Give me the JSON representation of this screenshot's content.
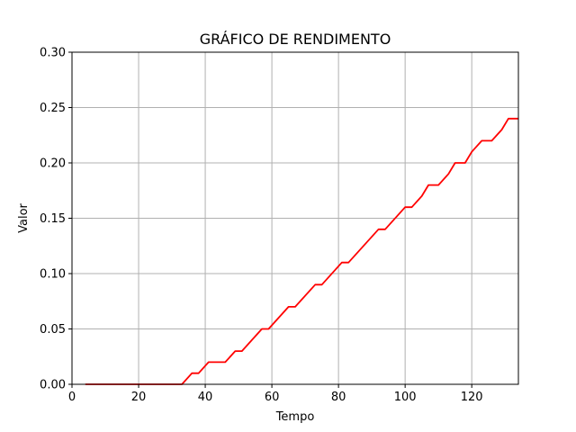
{
  "chart_data": {
    "type": "line",
    "title": "GRÁFICO DE RENDIMENTO",
    "xlabel": "Tempo",
    "ylabel": "Valor",
    "xlim": [
      0,
      134
    ],
    "ylim": [
      0,
      0.3
    ],
    "grid": true,
    "x_ticks": [
      0,
      20,
      40,
      60,
      80,
      100,
      120
    ],
    "x_tick_labels": [
      "0",
      "20",
      "40",
      "60",
      "80",
      "100",
      "120"
    ],
    "y_ticks": [
      0,
      0.05,
      0.1,
      0.15,
      0.2,
      0.25,
      0.3
    ],
    "y_tick_labels": [
      "0.00",
      "0.05",
      "0.10",
      "0.15",
      "0.20",
      "0.25",
      "0.30"
    ],
    "series": [
      {
        "color": "#ff0000",
        "x": [
          4,
          33,
          36,
          38,
          41,
          46,
          49,
          51,
          57,
          59,
          65,
          67,
          73,
          75,
          81,
          83,
          92,
          94,
          100,
          102,
          105,
          107,
          110,
          113,
          115,
          118,
          120,
          123,
          126,
          129,
          131,
          134
        ],
        "y": [
          0.0,
          0.0,
          0.01,
          0.01,
          0.02,
          0.02,
          0.03,
          0.03,
          0.05,
          0.05,
          0.07,
          0.07,
          0.09,
          0.09,
          0.11,
          0.11,
          0.14,
          0.14,
          0.16,
          0.16,
          0.17,
          0.18,
          0.18,
          0.19,
          0.2,
          0.2,
          0.21,
          0.22,
          0.22,
          0.23,
          0.24,
          0.24
        ]
      }
    ]
  }
}
